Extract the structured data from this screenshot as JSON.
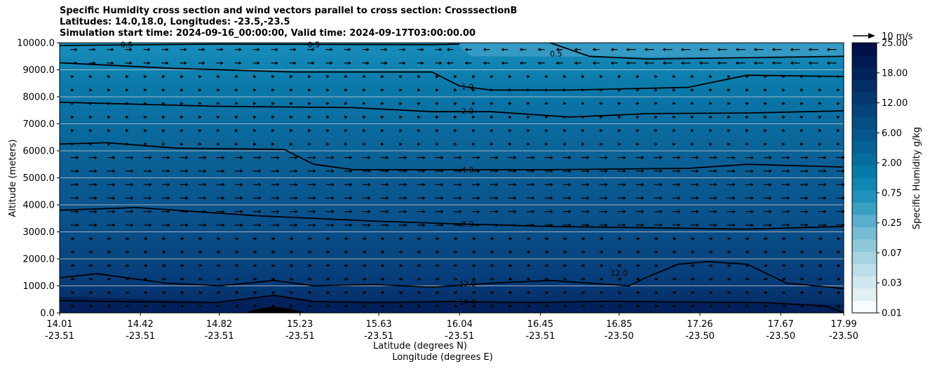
{
  "title_lines": [
    "Specific Humidity cross section and wind vectors parallel to cross section: CrosssectionB",
    "Latitudes: 14.0,18.0, Longitudes: -23.5,-23.5",
    "Simulation start time: 2024-09-16_00:00:00, Valid time: 2024-09-17T03:00:00.00"
  ],
  "chart_data": {
    "type": "contourf",
    "title": "Specific Humidity cross section and wind vectors parallel to cross section: CrosssectionB",
    "ylabel": "Altitude (meters)",
    "xlabel_line1": "Latitude (degrees N)",
    "xlabel_line2": "Longitude (degrees E)",
    "ylim": [
      0,
      10000
    ],
    "y_ticks": [
      "0.0",
      "1000.0",
      "2000.0",
      "3000.0",
      "4000.0",
      "5000.0",
      "6000.0",
      "7000.0",
      "8000.0",
      "9000.0",
      "10000.0"
    ],
    "y_tick_values": [
      0,
      1000,
      2000,
      3000,
      4000,
      5000,
      6000,
      7000,
      8000,
      9000,
      10000
    ],
    "x_ticks_lat": [
      "14.01",
      "14.42",
      "14.82",
      "15.23",
      "15.63",
      "16.04",
      "16.45",
      "16.85",
      "17.26",
      "17.67",
      "17.99"
    ],
    "x_ticks_lon": [
      "-23.51",
      "-23.51",
      "-23.51",
      "-23.51",
      "-23.51",
      "-23.51",
      "-23.51",
      "-23.50",
      "-23.50",
      "-23.50",
      "-23.50"
    ],
    "x_tick_lat_values": [
      14.01,
      14.42,
      14.82,
      15.23,
      15.63,
      16.04,
      16.45,
      16.85,
      17.26,
      17.67,
      17.99
    ],
    "colorbar_label": "Specific Humidity g/kg",
    "colorbar_ticks": [
      "0.01",
      "0.03",
      "0.07",
      "0.25",
      "0.75",
      "2.00",
      "6.00",
      "12.00",
      "18.00",
      "25.00"
    ],
    "quiver_key_label": "10 m/s",
    "contour_lines": [
      {
        "level": "0.5",
        "x": [
          14.01,
          14.8,
          15.9,
          16.04
        ],
        "y": [
          9900,
          9950,
          9930,
          9950
        ]
      },
      {
        "level": "0.5",
        "x": [
          16.5,
          16.7,
          17.0,
          17.99
        ],
        "y": [
          10000,
          9500,
          9400,
          9500
        ]
      },
      {
        "level": "1.0",
        "x": [
          14.01,
          14.6,
          15.2,
          15.9,
          16.04,
          16.2,
          16.6,
          17.2,
          17.5,
          17.99
        ],
        "y": [
          9260,
          9050,
          8920,
          8920,
          8400,
          8250,
          8250,
          8350,
          8800,
          8750
        ]
      },
      {
        "level": "2.0",
        "x": [
          14.01,
          14.8,
          15.5,
          15.9,
          16.2,
          16.6,
          17.0,
          17.5,
          17.99
        ],
        "y": [
          7800,
          7650,
          7600,
          7450,
          7450,
          7250,
          7380,
          7400,
          7480
        ]
      },
      {
        "level": "4.0",
        "x": [
          14.01,
          14.25,
          14.6,
          15.15,
          15.3,
          15.5,
          16.0,
          16.5,
          17.2,
          17.5,
          17.99
        ],
        "y": [
          6250,
          6300,
          6100,
          6050,
          5500,
          5300,
          5300,
          5300,
          5350,
          5500,
          5400
        ]
      },
      {
        "level": "8.0",
        "x": [
          14.01,
          14.4,
          15.0,
          15.6,
          16.0,
          16.5,
          17.0,
          17.5,
          17.99
        ],
        "y": [
          3800,
          3900,
          3600,
          3400,
          3300,
          3200,
          3150,
          3100,
          3200
        ]
      },
      {
        "level": "12.0",
        "x": [
          14.01,
          14.2,
          14.55,
          14.82,
          15.1,
          15.3,
          15.6,
          15.9,
          16.2,
          16.5,
          16.9,
          17.0,
          17.15,
          17.3,
          17.5,
          17.7,
          17.99
        ],
        "y": [
          1300,
          1450,
          1100,
          1000,
          1200,
          1000,
          1050,
          950,
          1100,
          1200,
          1000,
          1350,
          1800,
          1900,
          1800,
          1100,
          900
        ]
      },
      {
        "level": "16.0",
        "x": [
          14.01,
          14.3,
          14.8,
          15.1,
          15.3,
          15.6,
          16.0,
          16.4,
          16.8,
          17.2,
          17.6,
          17.9,
          17.99
        ],
        "y": [
          450,
          420,
          380,
          650,
          420,
          380,
          420,
          380,
          430,
          400,
          380,
          250,
          0
        ]
      }
    ]
  }
}
